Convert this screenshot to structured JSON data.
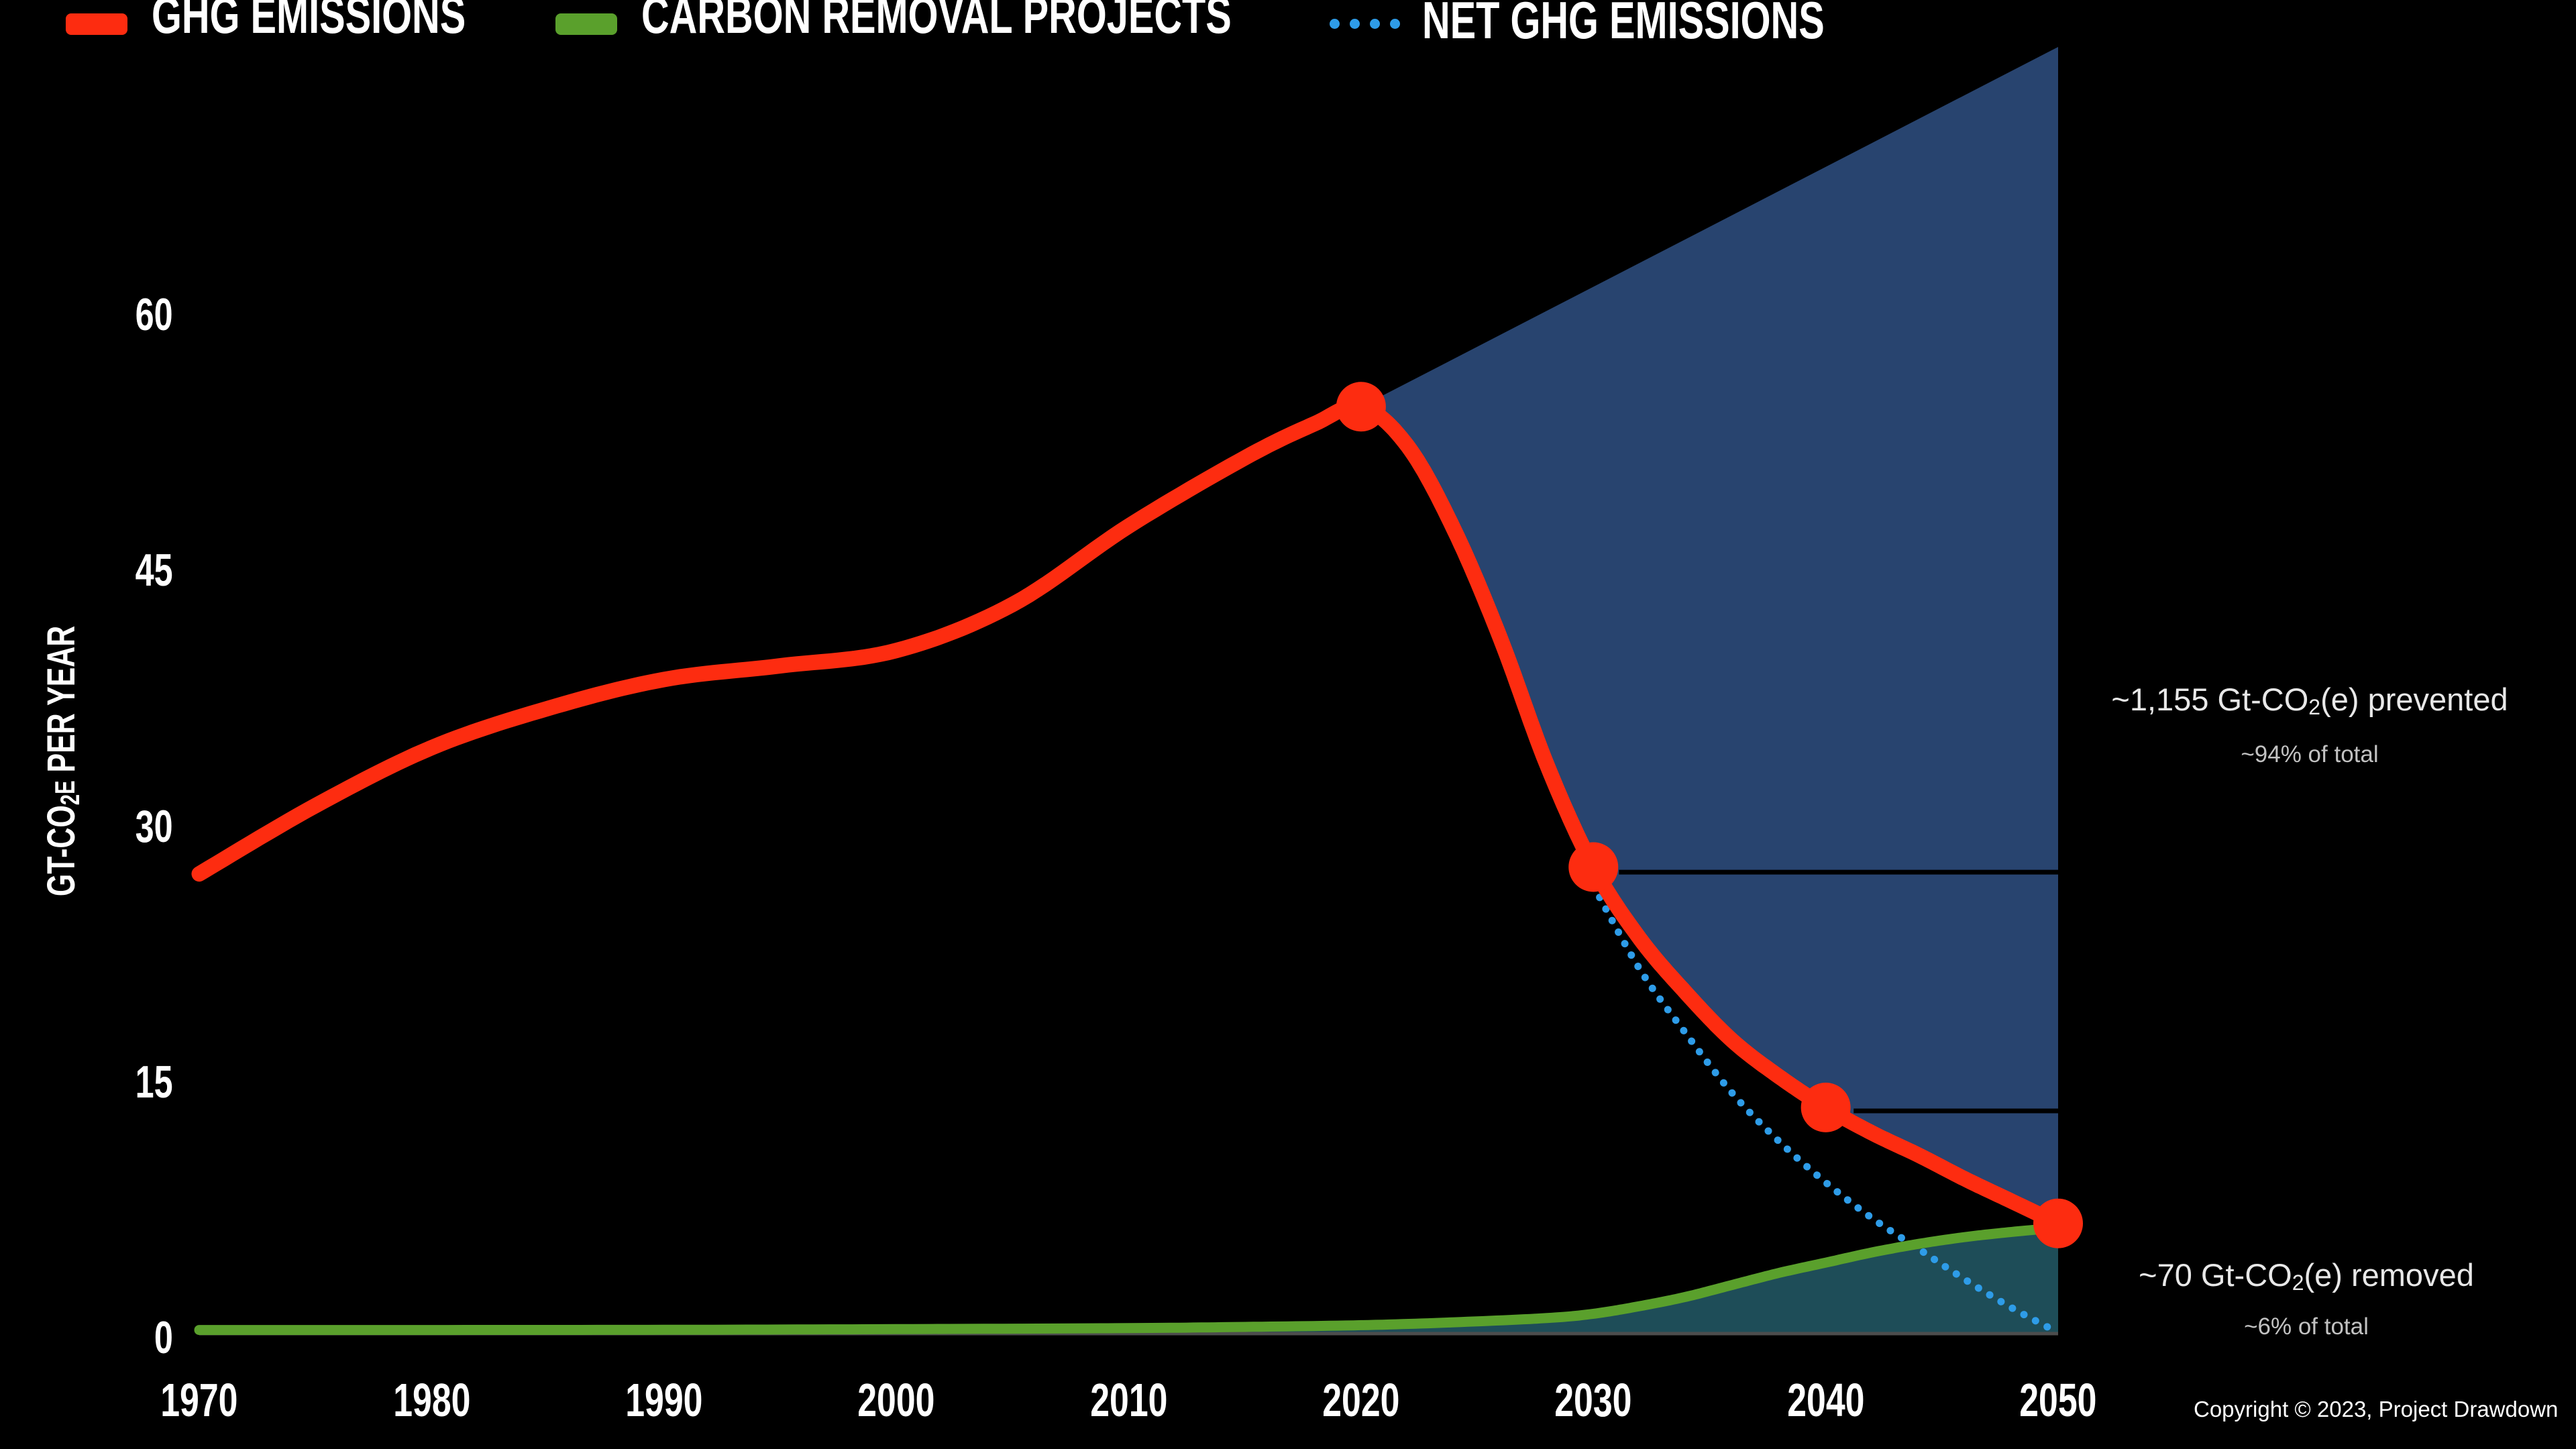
{
  "legend": {
    "items": [
      {
        "label": "GHG EMISSIONS",
        "swatch": "line",
        "color": "#fd2c10"
      },
      {
        "label": "CARBON REMOVAL PROJECTS",
        "swatch": "line",
        "color": "#5aa02c"
      },
      {
        "label": "NET GHG EMISSIONS",
        "swatch": "dots",
        "color": "#2e9ce8"
      }
    ]
  },
  "y_axis": {
    "title_parts": {
      "prefix": "GT-CO",
      "sub": "2",
      "small": "E",
      "suffix": " PER YEAR"
    },
    "ticks": [
      0,
      15,
      30,
      45,
      60
    ]
  },
  "x_axis": {
    "ticks": [
      1970,
      1980,
      1990,
      2000,
      2010,
      2020,
      2030,
      2040,
      2050
    ]
  },
  "annotations": {
    "prevented": {
      "prefix": "~1,155 Gt-CO",
      "sub": "2",
      "suffix": "(e) prevented",
      "note": "~94% of total"
    },
    "removed": {
      "prefix": "~70 Gt-CO",
      "sub": "2",
      "suffix": "(e) removed",
      "note": "~6% of total"
    }
  },
  "copyright": "Copyright © 2023, Project Drawdown",
  "colors": {
    "background": "#000000",
    "ghg_red": "#fd2c10",
    "removal_green": "#5aa02c",
    "net_blue_dotted": "#2e9ce8",
    "prevented_fill_navy": "#28446f",
    "removed_fill_teal": "#1e4d58",
    "axis_line_gray": "#4d4d4d",
    "reference_line_black": "#000000"
  },
  "chart_data": {
    "type": "line",
    "title": "",
    "xlabel": "",
    "ylabel": "GT-CO2E PER YEAR",
    "xlim": [
      1970,
      2050
    ],
    "ylim": [
      0,
      60
    ],
    "grid": false,
    "legend_position": "top-left",
    "series": [
      {
        "name": "GHG EMISSIONS",
        "style": "solid",
        "points": [
          [
            1970,
            27.2
          ],
          [
            1975,
            31.2
          ],
          [
            1980,
            34.6
          ],
          [
            1985,
            36.9
          ],
          [
            1990,
            38.6
          ],
          [
            1995,
            39.4
          ],
          [
            2000,
            40.3
          ],
          [
            2005,
            43.0
          ],
          [
            2010,
            47.6
          ],
          [
            2015,
            51.6
          ],
          [
            2018,
            53.6
          ],
          [
            2020,
            54.6
          ],
          [
            2022,
            52.3
          ],
          [
            2024,
            47.4
          ],
          [
            2026,
            41.0
          ],
          [
            2028,
            33.6
          ],
          [
            2030,
            27.6
          ],
          [
            2032,
            23.4
          ],
          [
            2034,
            20.2
          ],
          [
            2036,
            17.4
          ],
          [
            2038,
            15.3
          ],
          [
            2040,
            13.5
          ],
          [
            2042,
            12.0
          ],
          [
            2044,
            10.7
          ],
          [
            2046,
            9.3
          ],
          [
            2048,
            8.0
          ],
          [
            2050,
            6.7
          ]
        ]
      },
      {
        "name": "CARBON REMOVAL PROJECTS",
        "style": "solid",
        "points": [
          [
            1970,
            0.45
          ],
          [
            1980,
            0.45
          ],
          [
            1990,
            0.46
          ],
          [
            2000,
            0.5
          ],
          [
            2010,
            0.56
          ],
          [
            2015,
            0.63
          ],
          [
            2020,
            0.73
          ],
          [
            2024,
            0.9
          ],
          [
            2028,
            1.15
          ],
          [
            2030,
            1.4
          ],
          [
            2032,
            1.85
          ],
          [
            2034,
            2.4
          ],
          [
            2036,
            3.1
          ],
          [
            2038,
            3.8
          ],
          [
            2040,
            4.4
          ],
          [
            2042,
            5.0
          ],
          [
            2044,
            5.5
          ],
          [
            2046,
            5.9
          ],
          [
            2048,
            6.2
          ],
          [
            2050,
            6.45
          ]
        ]
      },
      {
        "name": "NET GHG EMISSIONS",
        "style": "dotted",
        "points": [
          [
            2030,
            26.5
          ],
          [
            2032,
            21.6
          ],
          [
            2034,
            17.8
          ],
          [
            2036,
            14.3
          ],
          [
            2038,
            11.5
          ],
          [
            2040,
            9.1
          ],
          [
            2042,
            7.0
          ],
          [
            2044,
            5.2
          ],
          [
            2046,
            3.4
          ],
          [
            2048,
            1.75
          ],
          [
            2050,
            0.3
          ]
        ]
      }
    ],
    "bau_projection_line": [
      [
        2020,
        54.6
      ],
      [
        2050,
        75.7
      ]
    ],
    "markers_red_dots": [
      [
        2020,
        54.6
      ],
      [
        2030,
        27.6
      ],
      [
        2040,
        13.5
      ],
      [
        2050,
        6.7
      ]
    ],
    "reference_lines": [
      {
        "value": 27.3,
        "from_year": 2031.1,
        "to_year": 2050
      },
      {
        "value": 13.3,
        "from_year": 2041.2,
        "to_year": 2050
      }
    ],
    "prevented_area": "between BAU projection line and GHG emissions curve, 2020-2050",
    "removed_area": "between carbon removal curve and zero axis, ~2028-2050"
  }
}
